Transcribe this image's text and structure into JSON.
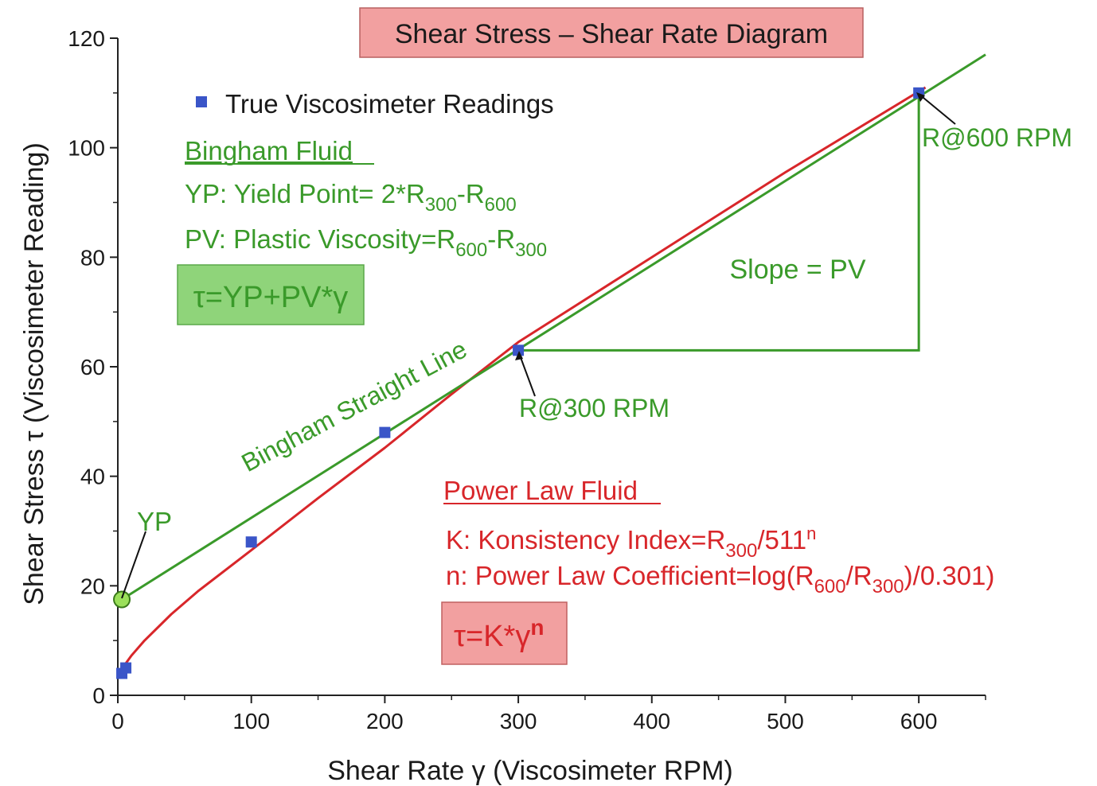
{
  "chart_data": {
    "type": "line",
    "title": "Shear Stress – Shear Rate Diagram",
    "xlabel": "Shear Rate γ (Viscosimeter RPM)",
    "ylabel": "Shear Stress τ (Viscosimeter Reading)",
    "xlim": [
      0,
      650
    ],
    "ylim": [
      0,
      120
    ],
    "x_ticks": [
      0,
      100,
      200,
      300,
      400,
      500,
      600
    ],
    "y_ticks": [
      0,
      20,
      40,
      60,
      80,
      100,
      120
    ],
    "grid": false,
    "legend_position": "top-left",
    "colors": {
      "bingham": "#3a9a2a",
      "power_law": "#d8262a",
      "readings": "#3a55c8",
      "title_box": "#f2a0a0",
      "bingham_box": "#8fd47a",
      "power_box": "#f2a0a0"
    },
    "series": [
      {
        "name": "True Viscosimeter Readings",
        "type": "scatter",
        "x": [
          3,
          6,
          100,
          200,
          300,
          600
        ],
        "y": [
          4,
          5,
          28,
          48,
          63,
          110
        ]
      },
      {
        "type": "line",
        "style": "bingham",
        "x": [
          3,
          650
        ],
        "y": [
          17.5,
          117
        ]
      },
      {
        "type": "line",
        "style": "power_law",
        "x": [
          5,
          10,
          20,
          40,
          60,
          100,
          150,
          200,
          250,
          300,
          400,
          500,
          605
        ],
        "y": [
          5.5,
          7.2,
          10,
          14.8,
          19,
          26.5,
          36,
          45.2,
          55,
          64.5,
          80,
          95.5,
          111
        ]
      },
      {
        "type": "line",
        "style": "slope_triangle",
        "x": [
          300,
          600,
          600
        ],
        "y": [
          63,
          63,
          110
        ]
      }
    ],
    "annotations": {
      "legend_label": "True Viscosimeter Readings",
      "bingham_heading": "Bingham Fluid",
      "yp_text": "YP: Yield Point= 2*R",
      "yp_sub1": "300",
      "yp_mid": "-R",
      "yp_sub2": "600",
      "pv_text": "PV: Plastic Viscosity=R",
      "pv_sub1": "600",
      "pv_mid": "-R",
      "pv_sub2": "300",
      "bingham_eq": "τ=YP+PV*γ",
      "bingham_line_label": "Bingham Straight Line",
      "slope_label": "Slope = PV",
      "r300_label": "R@300 RPM",
      "r600_label": "R@600 RPM",
      "yp_label": "YP",
      "power_heading": "Power Law Fluid",
      "k_text": "K: Konsistency Index=R",
      "k_sub": "300",
      "k_tail": "/511",
      "k_sup": "n",
      "n_text": "n: Power Law Coefficient=log(R",
      "n_sub1": "600",
      "n_mid": "/R",
      "n_sub2": "300",
      "n_tail": ")/0.301)",
      "power_eq": "τ=K*γ",
      "power_eq_sup": "n"
    }
  }
}
